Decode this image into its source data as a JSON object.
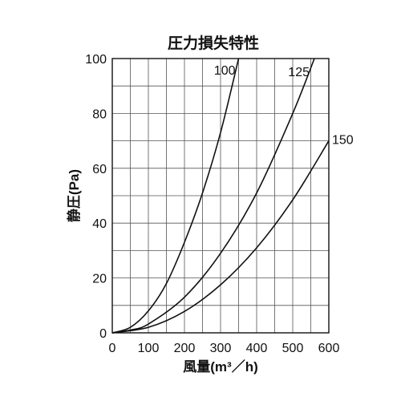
{
  "chart_data": {
    "type": "line",
    "title": "圧力損失特性",
    "xlabel": "風量(m³／h)",
    "ylabel": "静圧(Pa)",
    "xlim": [
      0,
      600
    ],
    "ylim": [
      0,
      100
    ],
    "x_ticks": [
      "0",
      "100",
      "200",
      "300",
      "400",
      "500",
      "600"
    ],
    "y_ticks": [
      "0",
      "20",
      "40",
      "60",
      "80",
      "100"
    ],
    "grid": true,
    "series": [
      {
        "name": "100",
        "x": [
          0,
          50,
          100,
          150,
          200,
          250,
          300,
          350
        ],
        "y": [
          0,
          2,
          8,
          18,
          33,
          51,
          73,
          100
        ]
      },
      {
        "name": "125",
        "x": [
          0,
          50,
          100,
          200,
          300,
          400,
          500,
          560
        ],
        "y": [
          0,
          1,
          3.2,
          13,
          29,
          51,
          80,
          100
        ]
      },
      {
        "name": "150",
        "x": [
          0,
          100,
          200,
          300,
          400,
          500,
          600
        ],
        "y": [
          0,
          2,
          7.8,
          17.5,
          31,
          48.5,
          70
        ]
      }
    ]
  }
}
